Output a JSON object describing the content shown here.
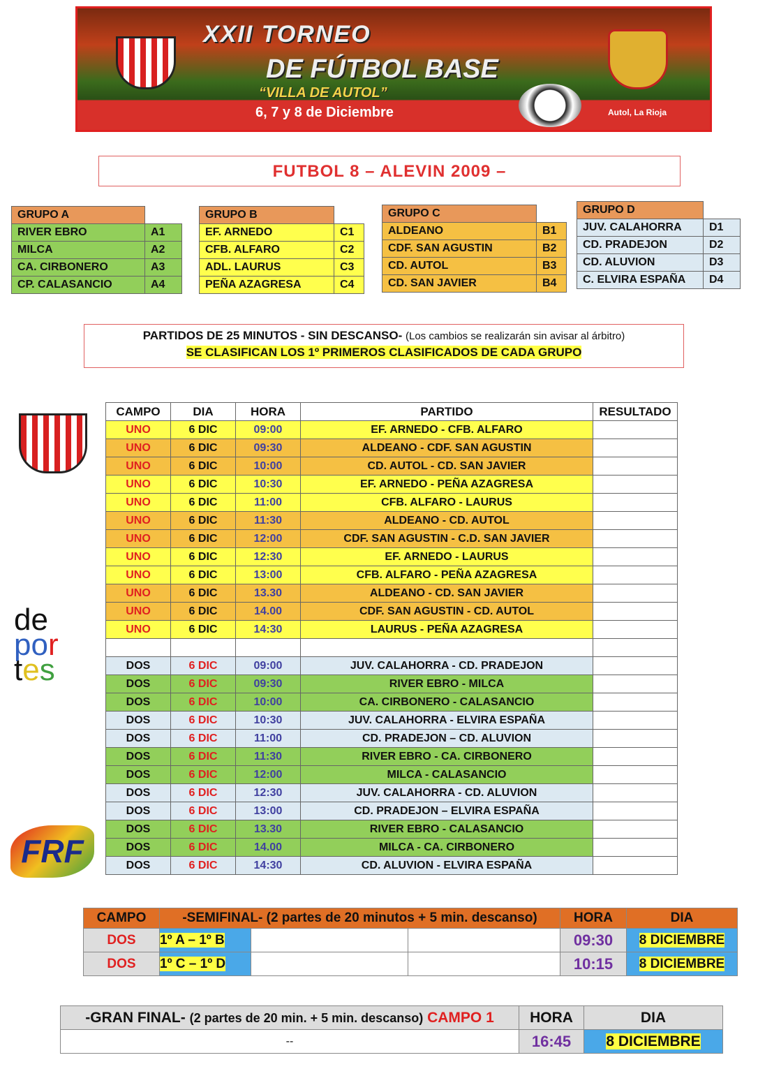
{
  "banner": {
    "line1": "XXII TORNEO",
    "line2": "DE FÚTBOL BASE",
    "line3": "“VILLA DE AUTOL”",
    "dates": "6, 7 y 8 de Diciembre",
    "place": "Autol, La Rioja",
    "club_logo": "C.D. AUTOL"
  },
  "title": "FUTBOL 8 – ALEVIN 2009 –",
  "groups": [
    {
      "name": "GRUPO A",
      "color": "#92cf5a",
      "teams": [
        [
          "RIVER EBRO",
          "A1"
        ],
        [
          "MILCA",
          "A2"
        ],
        [
          "CA. CIRBONERO",
          "A3"
        ],
        [
          "CP. CALASANCIO",
          "A4"
        ]
      ]
    },
    {
      "name": "GRUPO B",
      "color": "#ffff4d",
      "teams": [
        [
          "EF. ARNEDO",
          "C1"
        ],
        [
          "CFB. ALFARO",
          "C2"
        ],
        [
          "ADL. LAURUS",
          "C3"
        ],
        [
          "PEÑA AZAGRESA",
          "C4"
        ]
      ]
    },
    {
      "name": "GRUPO C",
      "color": "#f5c043",
      "teams": [
        [
          "ALDEANO",
          "B1"
        ],
        [
          "CDF. SAN AGUSTIN",
          "B2"
        ],
        [
          "CD. AUTOL",
          "B3"
        ],
        [
          "CD. SAN JAVIER",
          "B4"
        ]
      ]
    },
    {
      "name": "GRUPO D",
      "color": "#dce9f2",
      "teams": [
        [
          "JUV. CALAHORRA",
          "D1"
        ],
        [
          "CD. PRADEJON",
          "D2"
        ],
        [
          "CD. ALUVION",
          "D3"
        ],
        [
          "C. ELVIRA ESPAÑA",
          "D4"
        ]
      ]
    }
  ],
  "notes": {
    "line1": "PARTIDOS DE 25 MINUTOS - SIN DESCANSO-",
    "line1_small": "(Los cambios se realizarán sin avisar al árbitro)",
    "line2": "SE CLASIFICAN LOS 1º PRIMEROS CLASIFICADOS DE CADA GRUPO"
  },
  "schedule": {
    "headers": [
      "CAMPO",
      "DIA",
      "HORA",
      "PARTIDO",
      "RESULTADO"
    ],
    "rows": [
      [
        "UNO",
        "6 DIC",
        "09:00",
        "EF. ARNEDO -  CFB. ALFARO",
        "",
        "#ffff4d"
      ],
      [
        "UNO",
        "6 DIC",
        "09:30",
        "ALDEANO -  CDF. SAN AGUSTIN",
        "",
        "#f5c043"
      ],
      [
        "UNO",
        "6 DIC",
        "10:00",
        "CD. AUTOL -  CD. SAN JAVIER",
        "",
        "#f5c043"
      ],
      [
        "UNO",
        "6 DIC",
        "10:30",
        "EF. ARNEDO -  PEÑA AZAGRESA",
        "",
        "#ffff4d"
      ],
      [
        "UNO",
        "6 DIC",
        "11:00",
        "CFB. ALFARO -  LAURUS",
        "",
        "#ffff4d"
      ],
      [
        "UNO",
        "6 DIC",
        "11:30",
        "ALDEANO - CD. AUTOL",
        "",
        "#f5c043"
      ],
      [
        "UNO",
        "6 DIC",
        "12:00",
        "CDF. SAN AGUSTIN -  C.D. SAN JAVIER",
        "",
        "#f5c043"
      ],
      [
        "UNO",
        "6 DIC",
        "12:30",
        "EF. ARNEDO -  LAURUS",
        "",
        "#ffff4d"
      ],
      [
        "UNO",
        "6 DIC",
        "13:00",
        "CFB. ALFARO -  PEÑA AZAGRESA",
        "",
        "#ffff4d"
      ],
      [
        "UNO",
        "6 DIC",
        "13.30",
        "ALDEANO  - CD. SAN JAVIER",
        "",
        "#f5c043"
      ],
      [
        "UNO",
        "6 DIC",
        "14.00",
        "CDF. SAN AGUSTIN - CD. AUTOL",
        "",
        "#f5c043"
      ],
      [
        "UNO",
        "6 DIC",
        "14:30",
        "LAURUS - PEÑA AZAGRESA",
        "",
        "#ffff4d"
      ],
      [
        "",
        "",
        "",
        "",
        "",
        "#ffffff"
      ],
      [
        "DOS",
        "6 DIC",
        "09:00",
        "JUV. CALAHORRA -  CD. PRADEJON",
        "",
        "#dce9f2"
      ],
      [
        "DOS",
        "6 DIC",
        "09:30",
        "RIVER EBRO - MILCA",
        "",
        "#92cf5a"
      ],
      [
        "DOS",
        "6 DIC",
        "10:00",
        "CA. CIRBONERO - CALASANCIO",
        "",
        "#92cf5a"
      ],
      [
        "DOS",
        "6 DIC",
        "10:30",
        "JUV. CALAHORRA -   ELVIRA ESPAÑA",
        "",
        "#dce9f2"
      ],
      [
        "DOS",
        "6 DIC",
        "11:00",
        "CD. PRADEJON – CD. ALUVION",
        "",
        "#dce9f2"
      ],
      [
        "DOS",
        "6 DIC",
        "11:30",
        "RIVER EBRO - CA. CIRBONERO",
        "",
        "#92cf5a"
      ],
      [
        "DOS",
        "6 DIC",
        "12:00",
        "MILCA - CALASANCIO",
        "",
        "#92cf5a"
      ],
      [
        "DOS",
        "6 DIC",
        "12:30",
        "JUV. CALAHORRA - CD. ALUVION",
        "",
        "#dce9f2"
      ],
      [
        "DOS",
        "6 DIC",
        "13:00",
        "CD. PRADEJON – ELVIRA ESPAÑA",
        "",
        "#dce9f2"
      ],
      [
        "DOS",
        "6 DIC",
        "13.30",
        "RIVER EBRO  - CALASANCIO",
        "",
        "#92cf5a"
      ],
      [
        "DOS",
        "6 DIC",
        "14.00",
        "MILCA -  CA. CIRBONERO",
        "",
        "#92cf5a"
      ],
      [
        "DOS",
        "6 DIC",
        "14:30",
        "CD. ALUVION -  ELVIRA ESPAÑA",
        "",
        "#dce9f2"
      ]
    ]
  },
  "semifinal": {
    "headers": [
      "CAMPO",
      "-SEMIFINAL- (2 partes de 20 minutos + 5 min. descanso)",
      "HORA",
      "DIA"
    ],
    "rows": [
      {
        "campo": "DOS",
        "match": "1º A – 1º B",
        "hora": "09:30",
        "dia": "8 DICIEMBRE"
      },
      {
        "campo": "DOS",
        "match": "1º C – 1º D",
        "hora": "10:15",
        "dia": "8 DICIEMBRE"
      }
    ]
  },
  "final": {
    "title": "-GRAN FINAL-",
    "detail": "(2 partes de 20 min. + 5 min. descanso)",
    "campo": "CAMPO 1",
    "hora_label": "HORA",
    "dia_label": "DIA",
    "match": "--",
    "hora": "16:45",
    "dia": "8 DICIEMBRE"
  },
  "side_logos": {
    "deportes": "deportes",
    "frf": "FRF"
  }
}
